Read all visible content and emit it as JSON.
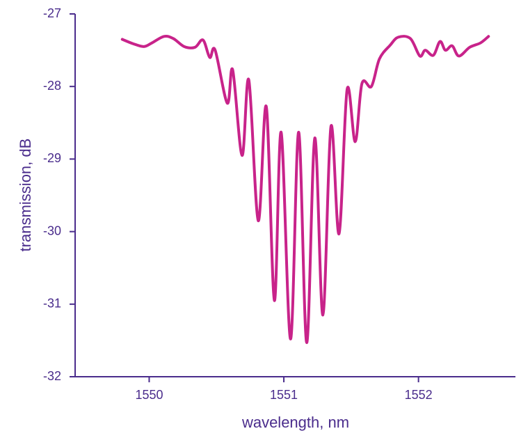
{
  "chart_data": {
    "type": "line",
    "xlabel": "wavelength, nm",
    "ylabel": "transmission, dB",
    "xlim": [
      1549.45,
      1552.72
    ],
    "ylim": [
      -32,
      -27
    ],
    "xticks": [
      1550,
      1551,
      1552
    ],
    "yticks": [
      -32,
      -31,
      -30,
      -29,
      -28,
      -27
    ],
    "grid": false,
    "axis_color": "#4a2c8c",
    "series": [
      {
        "color": "#c8238a",
        "x": [
          1549.8,
          1549.88,
          1549.96,
          1550.02,
          1550.11,
          1550.18,
          1550.26,
          1550.34,
          1550.4,
          1550.45,
          1550.49,
          1550.58,
          1550.62,
          1550.69,
          1550.74,
          1550.81,
          1550.87,
          1550.93,
          1550.98,
          1551.05,
          1551.11,
          1551.17,
          1551.23,
          1551.29,
          1551.35,
          1551.41,
          1551.47,
          1551.53,
          1551.58,
          1551.65,
          1551.71,
          1551.79,
          1551.85,
          1551.94,
          1552.01,
          1552.05,
          1552.11,
          1552.16,
          1552.2,
          1552.25,
          1552.3,
          1552.38,
          1552.46,
          1552.52
        ],
        "values": [
          -27.35,
          -27.41,
          -27.45,
          -27.4,
          -27.31,
          -27.34,
          -27.45,
          -27.46,
          -27.36,
          -27.6,
          -27.5,
          -28.23,
          -27.77,
          -28.95,
          -27.91,
          -29.85,
          -28.28,
          -30.95,
          -28.63,
          -31.48,
          -28.63,
          -31.53,
          -28.71,
          -31.15,
          -28.55,
          -30.03,
          -28.04,
          -28.76,
          -27.96,
          -28.0,
          -27.62,
          -27.43,
          -27.32,
          -27.34,
          -27.58,
          -27.5,
          -27.57,
          -27.38,
          -27.5,
          -27.44,
          -27.58,
          -27.46,
          -27.4,
          -27.31
        ]
      }
    ]
  }
}
